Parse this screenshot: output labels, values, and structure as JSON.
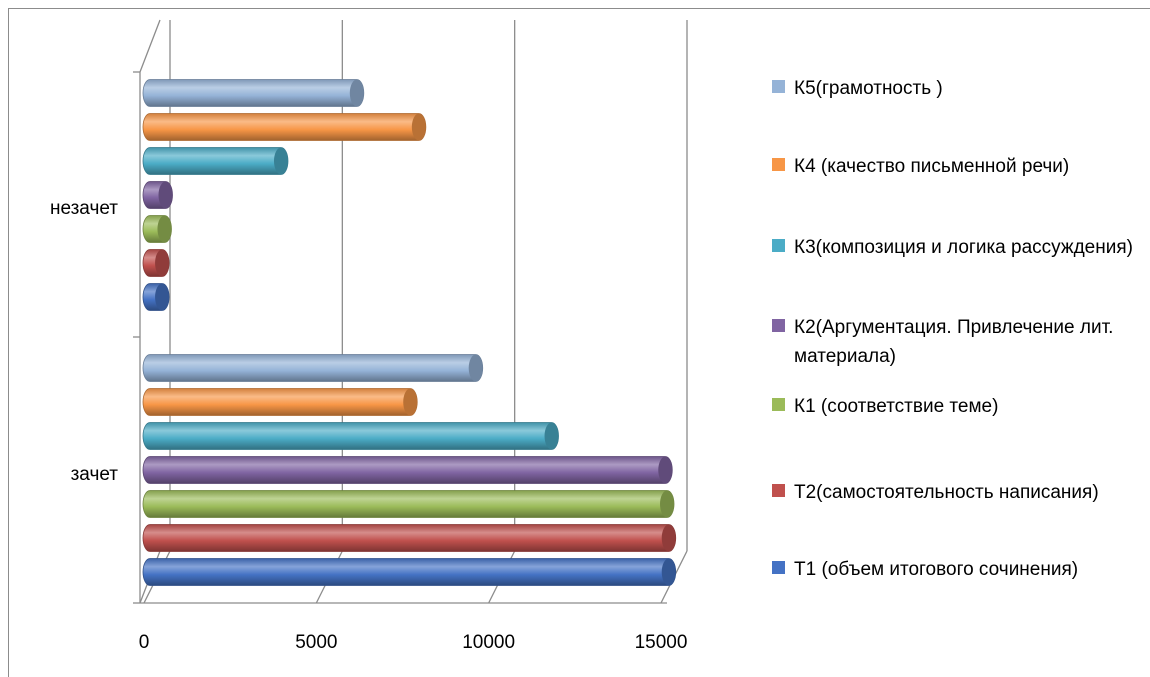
{
  "chart_data": {
    "type": "bar",
    "orientation": "horizontal",
    "style": "3d-cylinder",
    "categories": [
      "зачет",
      "незачет"
    ],
    "xlim": [
      0,
      15000
    ],
    "xticks": [
      "0",
      "5000",
      "10000",
      "15000"
    ],
    "grid": true,
    "legend_position": "right",
    "series": [
      {
        "name": "Т1 (объем итогового сочинения)",
        "color": "#4472c4",
        "values": [
          15050,
          350
        ]
      },
      {
        "name": "Т2(самостоятельность написания)",
        "color": "#c0504d",
        "values": [
          15050,
          350
        ]
      },
      {
        "name": "К1 (соответствие теме)",
        "color": "#9bbb59",
        "values": [
          15000,
          420
        ]
      },
      {
        "name": "К2(Аргументация. Привлечение лит. материала)",
        "color": "#8064a2",
        "values": [
          14950,
          450
        ]
      },
      {
        "name": "К3(композиция и логика рассуждения)",
        "color": "#4bacc6",
        "values": [
          11650,
          3800
        ]
      },
      {
        "name": "К4 (качество письменной речи)",
        "color": "#f79646",
        "values": [
          7550,
          7800
        ]
      },
      {
        "name": "К5(грамотность )",
        "color": "#95b3d7",
        "values": [
          9450,
          6000
        ]
      }
    ]
  }
}
